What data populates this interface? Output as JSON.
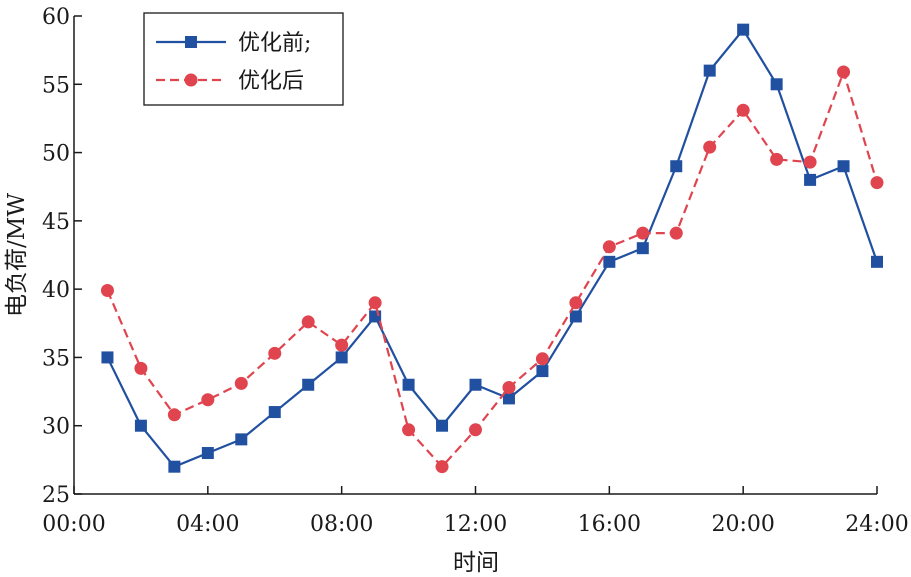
{
  "chart_data": {
    "type": "line",
    "title": "",
    "xlabel": "时间",
    "ylabel": "电负荷/MW",
    "x": [
      1,
      2,
      3,
      4,
      5,
      6,
      7,
      8,
      9,
      10,
      11,
      12,
      13,
      14,
      15,
      16,
      17,
      18,
      19,
      20,
      21,
      22,
      23,
      24
    ],
    "x_ticks": [
      0,
      4,
      8,
      12,
      16,
      20,
      24
    ],
    "x_tick_labels": [
      "00:00",
      "04:00",
      "08:00",
      "12:00",
      "16:00",
      "20:00",
      "24:00"
    ],
    "xlim": [
      0,
      24
    ],
    "ylim": [
      25,
      60
    ],
    "y_ticks": [
      25,
      30,
      35,
      40,
      45,
      50,
      55,
      60
    ],
    "y_tick_labels": [
      "25",
      "30",
      "35",
      "40",
      "45",
      "50",
      "55",
      "60"
    ],
    "grid": false,
    "legend_position": "top-left",
    "series": [
      {
        "name": "优化前;",
        "color": "#2150a0",
        "marker": "square",
        "line_style": "solid",
        "values": [
          35,
          30,
          27,
          28,
          29,
          31,
          33,
          35,
          38,
          33,
          30,
          33,
          32,
          34,
          38,
          42,
          43,
          49,
          56,
          59,
          55,
          48,
          49,
          42
        ]
      },
      {
        "name": "优化后",
        "color": "#e0444e",
        "marker": "circle",
        "line_style": "dashed",
        "values": [
          39.9,
          34.2,
          30.8,
          31.9,
          33.1,
          35.3,
          37.6,
          35.9,
          39,
          29.7,
          27,
          29.7,
          32.8,
          34.9,
          39,
          43.1,
          44.1,
          44.1,
          50.4,
          53.1,
          49.5,
          49.3,
          55.9,
          47.8
        ]
      }
    ]
  }
}
